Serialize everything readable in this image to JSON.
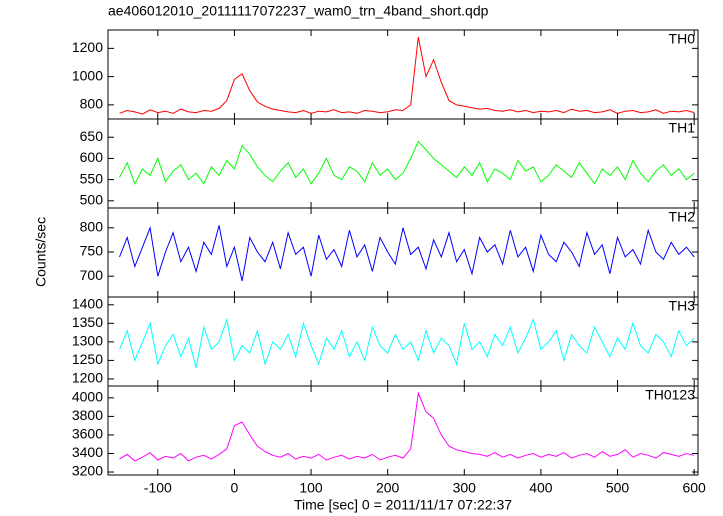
{
  "chart_data": {
    "type": "line",
    "title": "ae406012010_20111117072237_wam0_trn_4band_short.qdp",
    "xlabel": "Time [sec] 0 = 2011/11/17 07:22:37",
    "ylabel": "Counts/sec",
    "xlim": [
      -165,
      605
    ],
    "xticks": [
      -100,
      0,
      100,
      200,
      300,
      400,
      500,
      600
    ],
    "x": [
      -150,
      -140,
      -130,
      -120,
      -110,
      -100,
      -90,
      -80,
      -70,
      -60,
      -50,
      -40,
      -30,
      -20,
      -10,
      0,
      10,
      20,
      30,
      40,
      50,
      60,
      70,
      80,
      90,
      100,
      110,
      120,
      130,
      140,
      150,
      160,
      170,
      180,
      190,
      200,
      210,
      220,
      230,
      240,
      250,
      260,
      270,
      280,
      290,
      300,
      310,
      320,
      330,
      340,
      350,
      360,
      370,
      380,
      390,
      400,
      410,
      420,
      430,
      440,
      450,
      460,
      470,
      480,
      490,
      500,
      510,
      520,
      530,
      540,
      550,
      560,
      570,
      580,
      590,
      600
    ],
    "series": [
      {
        "name": "TH0",
        "color": "#ff0000",
        "ylim": [
          700,
          1330
        ],
        "yticks": [
          800,
          1000,
          1200
        ],
        "values": [
          740,
          760,
          750,
          735,
          765,
          745,
          755,
          740,
          770,
          750,
          745,
          760,
          755,
          775,
          830,
          980,
          1020,
          900,
          820,
          790,
          770,
          760,
          750,
          745,
          760,
          740,
          755,
          750,
          765,
          745,
          750,
          740,
          760,
          755,
          745,
          750,
          765,
          760,
          800,
          1280,
          1000,
          1120,
          960,
          830,
          800,
          790,
          780,
          770,
          775,
          760,
          755,
          765,
          750,
          760,
          745,
          755,
          750,
          760,
          745,
          770,
          755,
          760,
          745,
          750,
          765,
          740,
          755,
          760,
          745,
          750,
          765,
          740,
          755,
          750,
          760,
          745
        ]
      },
      {
        "name": "TH1",
        "color": "#00ff00",
        "ylim": [
          483,
          693
        ],
        "yticks": [
          500,
          550,
          600,
          650
        ],
        "values": [
          555,
          590,
          540,
          575,
          560,
          600,
          545,
          570,
          585,
          550,
          565,
          540,
          580,
          560,
          595,
          575,
          630,
          610,
          580,
          560,
          545,
          570,
          590,
          555,
          575,
          540,
          565,
          600,
          560,
          550,
          580,
          570,
          545,
          590,
          560,
          575,
          550,
          565,
          600,
          640,
          620,
          600,
          585,
          570,
          555,
          580,
          560,
          590,
          545,
          575,
          565,
          550,
          595,
          570,
          580,
          545,
          560,
          585,
          570,
          555,
          590,
          565,
          540,
          575,
          560,
          580,
          550,
          595,
          565,
          545,
          570,
          585,
          560,
          575,
          550,
          565
        ]
      },
      {
        "name": "TH2",
        "color": "#0000ff",
        "ylim": [
          657,
          841
        ],
        "yticks": [
          700,
          750,
          800
        ],
        "values": [
          740,
          780,
          720,
          760,
          800,
          700,
          750,
          790,
          730,
          760,
          710,
          770,
          745,
          805,
          720,
          760,
          690,
          780,
          750,
          730,
          770,
          715,
          790,
          745,
          760,
          700,
          785,
          735,
          755,
          720,
          795,
          740,
          765,
          710,
          780,
          750,
          725,
          800,
          745,
          760,
          715,
          775,
          740,
          790,
          730,
          755,
          705,
          780,
          750,
          765,
          725,
          795,
          740,
          760,
          710,
          785,
          745,
          730,
          770,
          750,
          720,
          790,
          745,
          765,
          705,
          780,
          740,
          755,
          725,
          795,
          750,
          735,
          770,
          745,
          760,
          740
        ]
      },
      {
        "name": "TH3",
        "color": "#00ffff",
        "ylim": [
          1181,
          1421
        ],
        "yticks": [
          1200,
          1250,
          1300,
          1350,
          1400
        ],
        "values": [
          1280,
          1330,
          1250,
          1300,
          1350,
          1240,
          1290,
          1320,
          1260,
          1310,
          1230,
          1340,
          1280,
          1300,
          1360,
          1250,
          1290,
          1270,
          1330,
          1240,
          1300,
          1280,
          1320,
          1260,
          1350,
          1290,
          1240,
          1310,
          1280,
          1330,
          1260,
          1300,
          1250,
          1340,
          1290,
          1270,
          1320,
          1280,
          1300,
          1250,
          1330,
          1270,
          1310,
          1290,
          1240,
          1350,
          1280,
          1300,
          1260,
          1320,
          1290,
          1340,
          1270,
          1310,
          1360,
          1280,
          1300,
          1330,
          1250,
          1320,
          1290,
          1270,
          1340,
          1300,
          1260,
          1310,
          1280,
          1350,
          1290,
          1270,
          1320,
          1300,
          1260,
          1330,
          1290,
          1310
        ]
      },
      {
        "name": "TH0123",
        "color": "#ff00ff",
        "ylim": [
          3168,
          4128
        ],
        "yticks": [
          3200,
          3400,
          3600,
          3800,
          4000
        ],
        "values": [
          3340,
          3390,
          3320,
          3360,
          3410,
          3330,
          3370,
          3350,
          3400,
          3320,
          3360,
          3380,
          3340,
          3390,
          3450,
          3700,
          3740,
          3600,
          3480,
          3420,
          3380,
          3360,
          3400,
          3340,
          3370,
          3350,
          3390,
          3330,
          3360,
          3380,
          3340,
          3370,
          3350,
          3390,
          3330,
          3360,
          3380,
          3350,
          3450,
          4050,
          3850,
          3780,
          3600,
          3480,
          3440,
          3420,
          3400,
          3390,
          3370,
          3410,
          3360,
          3390,
          3350,
          3380,
          3400,
          3360,
          3390,
          3370,
          3410,
          3350,
          3380,
          3400,
          3360,
          3420,
          3370,
          3390,
          3440,
          3360,
          3400,
          3380,
          3350,
          3410,
          3390,
          3370,
          3400,
          3380
        ]
      }
    ]
  }
}
